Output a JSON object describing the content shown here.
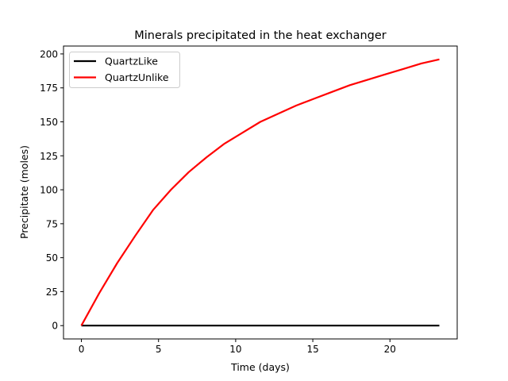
{
  "chart_data": {
    "type": "line",
    "title": "Minerals precipitated in the heat exchanger",
    "xlabel": "Time (days)",
    "ylabel": "Precipitate (moles)",
    "xlim": [
      -1.16,
      24.36
    ],
    "ylim": [
      -9.8,
      205.8
    ],
    "xticks": [
      0,
      5,
      10,
      15,
      20
    ],
    "yticks": [
      0,
      25,
      50,
      75,
      100,
      125,
      150,
      175,
      200
    ],
    "grid": false,
    "legend_position": "top-left",
    "x": [
      0,
      1.16,
      2.32,
      3.48,
      4.64,
      5.8,
      6.96,
      8.12,
      9.28,
      10.44,
      11.6,
      12.76,
      13.92,
      15.08,
      16.24,
      17.4,
      18.56,
      19.72,
      20.88,
      22.04,
      23.2
    ],
    "series": [
      {
        "name": "QuartzLike",
        "color": "#000000",
        "values": [
          0,
          0,
          0,
          0,
          0,
          0,
          0,
          0,
          0,
          0,
          0,
          0,
          0,
          0,
          0,
          0,
          0,
          0,
          0,
          0,
          0
        ]
      },
      {
        "name": "QuartzUnlike",
        "color": "#ff0000",
        "values": [
          0,
          24,
          46,
          66,
          85,
          100,
          113,
          124,
          134,
          142,
          150,
          156,
          162,
          167,
          172,
          177,
          181,
          185,
          189,
          193,
          196
        ]
      }
    ]
  }
}
